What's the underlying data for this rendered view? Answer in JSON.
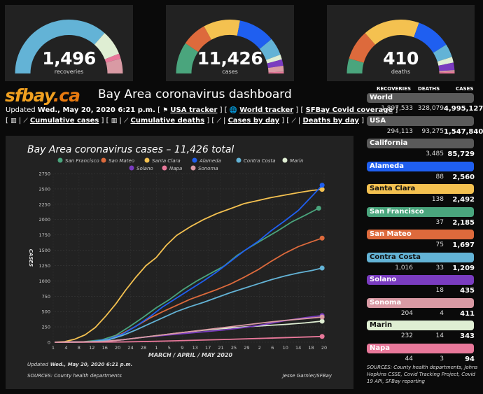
{
  "gauges": [
    {
      "value": "1,496",
      "label": "recoveries",
      "segments": [
        {
          "color": "#63b3d6",
          "frac": 0.73
        },
        {
          "color": "#dfeed3",
          "frac": 0.15
        },
        {
          "color": "#e8789a",
          "frac": 0.03
        },
        {
          "color": "#d99aa4",
          "frac": 0.09
        }
      ]
    },
    {
      "value": "11,426",
      "label": "cases",
      "segments": [
        {
          "color": "#4aa57d",
          "frac": 0.19
        },
        {
          "color": "#dd6a3c",
          "frac": 0.15
        },
        {
          "color": "#f4c150",
          "frac": 0.22
        },
        {
          "color": "#1f5ff0",
          "frac": 0.22
        },
        {
          "color": "#63b3d6",
          "frac": 0.106
        },
        {
          "color": "#dfeed3",
          "frac": 0.03
        },
        {
          "color": "#7a3cc0",
          "frac": 0.038
        },
        {
          "color": "#d99aa4",
          "frac": 0.036
        },
        {
          "color": "#e8789a",
          "frac": 0.01
        }
      ]
    },
    {
      "value": "410",
      "label": "deaths",
      "segments": [
        {
          "color": "#4aa57d",
          "frac": 0.09
        },
        {
          "color": "#dd6a3c",
          "frac": 0.18
        },
        {
          "color": "#f4c150",
          "frac": 0.34
        },
        {
          "color": "#1f5ff0",
          "frac": 0.21
        },
        {
          "color": "#63b3d6",
          "frac": 0.08
        },
        {
          "color": "#dfeed3",
          "frac": 0.035
        },
        {
          "color": "#7a3cc0",
          "frac": 0.045
        },
        {
          "color": "#d99aa4",
          "frac": 0.01
        },
        {
          "color": "#e8789a",
          "frac": 0.01
        }
      ]
    }
  ],
  "header": {
    "logo_main": "sfbay",
    "logo_ca": ".ca",
    "title": "Bay Area coronavirus dashboard",
    "updated_prefix": "Updated",
    "updated_date": "Wed., May 20, 2020 6:21 p.m.",
    "links": [
      "USA tracker",
      "World tracker",
      "SFBay Covid coverage"
    ],
    "links2": [
      "Cumulative cases",
      "Cumulative deaths",
      "Cases by day",
      "Deaths by day"
    ]
  },
  "sidebar": {
    "headers": {
      "recoveries": "RECOVERIES",
      "deaths": "DEATHS",
      "cases": "CASES"
    },
    "regions": [
      {
        "name": "World",
        "recoveries": "1,897,533",
        "deaths": "328,079",
        "cases": "4,995,127",
        "bg": "#5a5a5a",
        "fg": "#ffffff"
      },
      {
        "name": "USA",
        "recoveries": "294,113",
        "deaths": "93,275",
        "cases": "1,547,840",
        "bg": "#5a5a5a",
        "fg": "#ffffff"
      },
      {
        "name": "California",
        "recoveries": "",
        "deaths": "3,485",
        "cases": "85,729",
        "bg": "#5a5a5a",
        "fg": "#ffffff"
      },
      {
        "name": "Alameda",
        "recoveries": "",
        "deaths": "88",
        "cases": "2,560",
        "bg": "#1f5ff0",
        "fg": "#ffffff"
      },
      {
        "name": "Santa Clara",
        "recoveries": "",
        "deaths": "138",
        "cases": "2,492",
        "bg": "#f4c150",
        "fg": "#111111"
      },
      {
        "name": "San Francisco",
        "recoveries": "",
        "deaths": "37",
        "cases": "2,185",
        "bg": "#4aa57d",
        "fg": "#ffffff"
      },
      {
        "name": "San Mateo",
        "recoveries": "",
        "deaths": "75",
        "cases": "1,697",
        "bg": "#dd6a3c",
        "fg": "#ffffff"
      },
      {
        "name": "Contra Costa",
        "recoveries": "1,016",
        "deaths": "33",
        "cases": "1,209",
        "bg": "#63b3d6",
        "fg": "#111111"
      },
      {
        "name": "Solano",
        "recoveries": "",
        "deaths": "18",
        "cases": "435",
        "bg": "#7a3cc0",
        "fg": "#ffffff"
      },
      {
        "name": "Sonoma",
        "recoveries": "204",
        "deaths": "4",
        "cases": "411",
        "bg": "#d99aa4",
        "fg": "#ffffff"
      },
      {
        "name": "Marin",
        "recoveries": "232",
        "deaths": "14",
        "cases": "343",
        "bg": "#dfeed3",
        "fg": "#111111"
      },
      {
        "name": "Napa",
        "recoveries": "44",
        "deaths": "3",
        "cases": "94",
        "bg": "#e8789a",
        "fg": "#ffffff"
      }
    ],
    "sources": "SOURCES: County health departments, Johns Hopkins CSSE, Covid Tracking Project, Covid 19 API, SFBay reporting"
  },
  "chart_data": {
    "type": "line",
    "title": "Bay Area coronavirus cases – 11,426 total",
    "xlabel": "MARCH / APRIL / MAY 2020",
    "ylabel": "CASES",
    "ylim": [
      0,
      2750
    ],
    "yticks": [
      0,
      250,
      500,
      750,
      1000,
      1250,
      1500,
      1750,
      2000,
      2250,
      2500,
      2750
    ],
    "xticks": [
      "1",
      "4",
      "8",
      "12",
      "16",
      "20",
      "24",
      "28",
      "1",
      "5",
      "9",
      "13",
      "17",
      "21",
      "25",
      "29",
      "2",
      "6",
      "10",
      "14",
      "18",
      "20"
    ],
    "xlim": [
      0,
      80
    ],
    "legend_position": "top",
    "updated_prefix": "Updated",
    "updated_date": "Wed., May 20, 2020 6:21 p.m.",
    "sources": "SOURCES: County health departments",
    "credit": "Jesse Garnier/SFBay",
    "series": [
      {
        "name": "San Francisco",
        "color": "#4aa57d",
        "points": [
          [
            0,
            0
          ],
          [
            8,
            5
          ],
          [
            14,
            40
          ],
          [
            18,
            110
          ],
          [
            22,
            250
          ],
          [
            26,
            400
          ],
          [
            30,
            560
          ],
          [
            34,
            700
          ],
          [
            38,
            860
          ],
          [
            42,
            1000
          ],
          [
            46,
            1120
          ],
          [
            50,
            1240
          ],
          [
            54,
            1420
          ],
          [
            58,
            1560
          ],
          [
            62,
            1690
          ],
          [
            66,
            1820
          ],
          [
            70,
            1960
          ],
          [
            74,
            2070
          ],
          [
            78,
            2185
          ]
        ]
      },
      {
        "name": "San Mateo",
        "color": "#dd6a3c",
        "points": [
          [
            0,
            0
          ],
          [
            8,
            2
          ],
          [
            12,
            10
          ],
          [
            16,
            50
          ],
          [
            20,
            140
          ],
          [
            24,
            260
          ],
          [
            28,
            390
          ],
          [
            32,
            500
          ],
          [
            36,
            600
          ],
          [
            40,
            700
          ],
          [
            44,
            780
          ],
          [
            48,
            860
          ],
          [
            52,
            950
          ],
          [
            56,
            1060
          ],
          [
            60,
            1180
          ],
          [
            64,
            1320
          ],
          [
            68,
            1450
          ],
          [
            72,
            1560
          ],
          [
            76,
            1640
          ],
          [
            79,
            1697
          ]
        ]
      },
      {
        "name": "Santa Clara",
        "color": "#f4c150",
        "points": [
          [
            0,
            0
          ],
          [
            3,
            10
          ],
          [
            6,
            50
          ],
          [
            9,
            120
          ],
          [
            12,
            240
          ],
          [
            15,
            420
          ],
          [
            18,
            620
          ],
          [
            21,
            850
          ],
          [
            24,
            1060
          ],
          [
            27,
            1250
          ],
          [
            30,
            1380
          ],
          [
            33,
            1580
          ],
          [
            36,
            1740
          ],
          [
            40,
            1880
          ],
          [
            44,
            2000
          ],
          [
            48,
            2100
          ],
          [
            52,
            2180
          ],
          [
            56,
            2260
          ],
          [
            60,
            2310
          ],
          [
            64,
            2360
          ],
          [
            68,
            2400
          ],
          [
            72,
            2440
          ],
          [
            76,
            2475
          ],
          [
            79,
            2492
          ]
        ]
      },
      {
        "name": "Alameda",
        "color": "#1f5ff0",
        "points": [
          [
            0,
            0
          ],
          [
            10,
            5
          ],
          [
            16,
            50
          ],
          [
            20,
            130
          ],
          [
            24,
            260
          ],
          [
            28,
            410
          ],
          [
            32,
            580
          ],
          [
            36,
            720
          ],
          [
            40,
            860
          ],
          [
            44,
            1000
          ],
          [
            48,
            1150
          ],
          [
            52,
            1320
          ],
          [
            56,
            1490
          ],
          [
            60,
            1640
          ],
          [
            64,
            1820
          ],
          [
            68,
            1980
          ],
          [
            72,
            2150
          ],
          [
            76,
            2380
          ],
          [
            79,
            2560
          ]
        ]
      },
      {
        "name": "Contra Costa",
        "color": "#63b3d6",
        "points": [
          [
            0,
            0
          ],
          [
            10,
            5
          ],
          [
            16,
            40
          ],
          [
            20,
            110
          ],
          [
            24,
            200
          ],
          [
            28,
            300
          ],
          [
            32,
            400
          ],
          [
            36,
            500
          ],
          [
            40,
            580
          ],
          [
            44,
            650
          ],
          [
            48,
            730
          ],
          [
            52,
            810
          ],
          [
            56,
            880
          ],
          [
            60,
            950
          ],
          [
            64,
            1020
          ],
          [
            68,
            1080
          ],
          [
            72,
            1130
          ],
          [
            76,
            1170
          ],
          [
            79,
            1209
          ]
        ]
      },
      {
        "name": "Marin",
        "color": "#dfeed3",
        "points": [
          [
            0,
            0
          ],
          [
            14,
            10
          ],
          [
            20,
            40
          ],
          [
            26,
            80
          ],
          [
            32,
            120
          ],
          [
            38,
            160
          ],
          [
            44,
            195
          ],
          [
            50,
            225
          ],
          [
            56,
            250
          ],
          [
            62,
            270
          ],
          [
            68,
            290
          ],
          [
            74,
            315
          ],
          [
            79,
            343
          ]
        ]
      },
      {
        "name": "Solano",
        "color": "#7a3cc0",
        "points": [
          [
            0,
            0
          ],
          [
            14,
            10
          ],
          [
            20,
            40
          ],
          [
            26,
            80
          ],
          [
            32,
            110
          ],
          [
            38,
            140
          ],
          [
            44,
            170
          ],
          [
            50,
            200
          ],
          [
            56,
            240
          ],
          [
            62,
            290
          ],
          [
            68,
            350
          ],
          [
            74,
            400
          ],
          [
            79,
            435
          ]
        ]
      },
      {
        "name": "Napa",
        "color": "#e8789a",
        "points": [
          [
            0,
            0
          ],
          [
            20,
            5
          ],
          [
            30,
            15
          ],
          [
            40,
            30
          ],
          [
            50,
            45
          ],
          [
            60,
            60
          ],
          [
            70,
            78
          ],
          [
            79,
            94
          ]
        ]
      },
      {
        "name": "Sonoma",
        "color": "#d99aa4",
        "points": [
          [
            0,
            0
          ],
          [
            14,
            10
          ],
          [
            20,
            40
          ],
          [
            26,
            80
          ],
          [
            32,
            120
          ],
          [
            38,
            160
          ],
          [
            44,
            200
          ],
          [
            50,
            240
          ],
          [
            56,
            280
          ],
          [
            62,
            320
          ],
          [
            68,
            355
          ],
          [
            74,
            385
          ],
          [
            79,
            411
          ]
        ]
      }
    ]
  }
}
